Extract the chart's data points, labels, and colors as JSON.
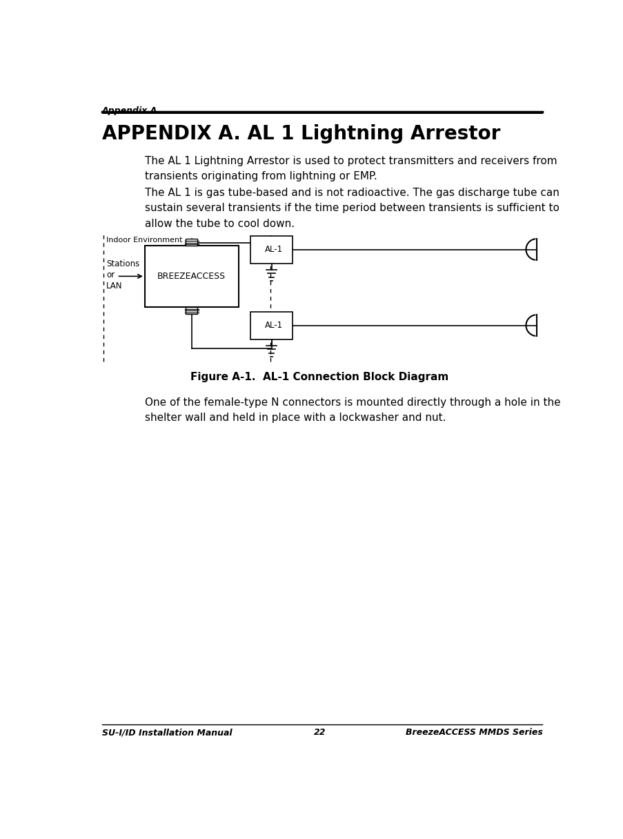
{
  "page_width": 9.04,
  "page_height": 12.16,
  "bg_color": "#ffffff",
  "header_text": "Appendix A",
  "footer_left": "SU-I/ID Installation Manual",
  "footer_center": "22",
  "footer_right": "BreezeACCESS MMDS Series",
  "title": "APPENDIX A. AL 1 Lightning Arrestor",
  "para1": "The AL 1 Lightning Arrestor is used to protect transmitters and receivers from\ntransients originating from lightning or EMP.",
  "para2": "The AL 1 is gas tube-based and is not radioactive. The gas discharge tube can\nsustain several transients if the time period between transients is sufficient to\nallow the tube to cool down.",
  "figure_caption": "Figure A-1.  AL-1 Connection Block Diagram",
  "para3": "One of the female-type N connectors is mounted directly through a hole in the\nshelter wall and held in place with a lockwasher and nut.",
  "indoor_label": "Indoor Environment",
  "stations_label": "Stations\nor\nLAN",
  "breeze_label": "BREEZEACCESS",
  "al1_label": "AL-1",
  "header_fontsize": 9,
  "title_fontsize": 20,
  "body_fontsize": 11,
  "caption_fontsize": 11,
  "footer_fontsize": 9
}
